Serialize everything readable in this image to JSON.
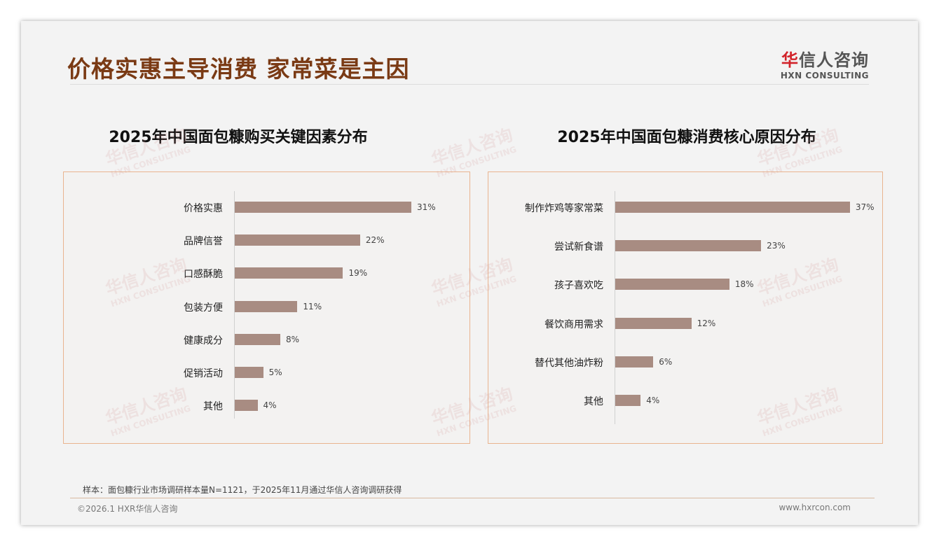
{
  "header": {
    "title": "价格实惠主导消费 家常菜是主因",
    "logo_cn_red": "华",
    "logo_cn": "信人咨询",
    "logo_en": "HXN CONSULTING"
  },
  "watermark": {
    "cn": "华信人咨询",
    "en": "HXN CONSULTING"
  },
  "chart_data": [
    {
      "type": "bar",
      "orientation": "horizontal",
      "title": "2025年中国面包糠购买关键因素分布",
      "categories": [
        "价格实惠",
        "品牌信誉",
        "口感酥脆",
        "包装方便",
        "健康成分",
        "促销活动",
        "其他"
      ],
      "values": [
        31,
        22,
        19,
        11,
        8,
        5,
        4
      ],
      "value_labels": [
        "31%",
        "22%",
        "19%",
        "11%",
        "8%",
        "5%",
        "4%"
      ],
      "unit": "%",
      "xlim": [
        0,
        31
      ],
      "color": "#a88c82"
    },
    {
      "type": "bar",
      "orientation": "horizontal",
      "title": "2025年中国面包糠消费核心原因分布",
      "categories": [
        "制作炸鸡等家常菜",
        "尝试新食谱",
        "孩子喜欢吃",
        "餐饮商用需求",
        "替代其他油炸粉",
        "其他"
      ],
      "values": [
        37,
        23,
        18,
        12,
        6,
        4
      ],
      "value_labels": [
        "37%",
        "23%",
        "18%",
        "12%",
        "6%",
        "4%"
      ],
      "unit": "%",
      "xlim": [
        0,
        37
      ],
      "color": "#a88c82"
    }
  ],
  "footer": {
    "note": "样本：面包糠行业市场调研样本量N=1121，于2025年11月通过华信人咨询调研获得",
    "copyright": "©2026.1 HXR华信人咨询",
    "site": "www.hxrcon.com"
  }
}
